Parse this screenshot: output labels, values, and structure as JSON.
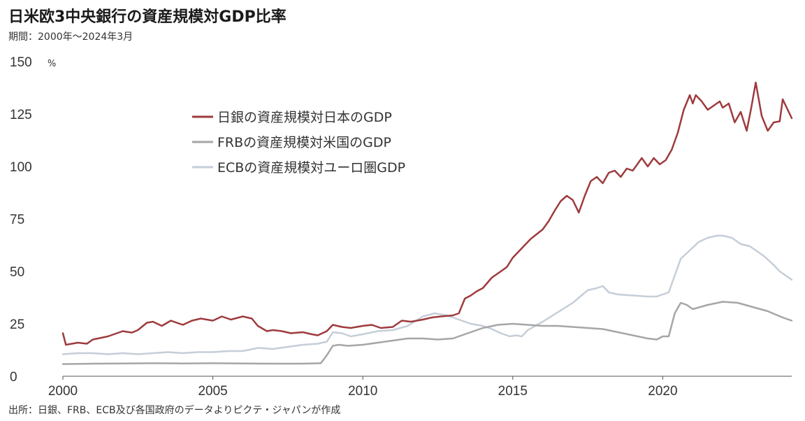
{
  "title": "日米欧3中央銀行の資産規模対GDP比率",
  "subtitle": "期間：2000年～2024年3月",
  "source": "出所：日銀、FRB、ECB及び各国政府のデータよりピクテ・ジャパンが作成",
  "chart_data": {
    "type": "line",
    "ylabel": "%",
    "ylim": [
      0,
      150
    ],
    "yticks": [
      0,
      25,
      50,
      75,
      100,
      125,
      150
    ],
    "xlim": [
      2000,
      2024.3
    ],
    "xticks": [
      2000,
      2005,
      2010,
      2015,
      2020
    ],
    "grid": false,
    "legend": "upper-left",
    "series": [
      {
        "name": "日銀の資産規模対日本のGDP",
        "color": "#9e3b3e",
        "points": [
          [
            2000.0,
            20.5
          ],
          [
            2000.1,
            15.0
          ],
          [
            2000.5,
            16.0
          ],
          [
            2000.8,
            15.5
          ],
          [
            2001.0,
            17.5
          ],
          [
            2001.5,
            19.0
          ],
          [
            2002.0,
            21.5
          ],
          [
            2002.3,
            20.8
          ],
          [
            2002.5,
            22.0
          ],
          [
            2002.8,
            25.5
          ],
          [
            2003.0,
            26.0
          ],
          [
            2003.3,
            24.0
          ],
          [
            2003.6,
            26.5
          ],
          [
            2004.0,
            24.5
          ],
          [
            2004.3,
            26.5
          ],
          [
            2004.6,
            27.5
          ],
          [
            2005.0,
            26.5
          ],
          [
            2005.3,
            28.5
          ],
          [
            2005.6,
            27.0
          ],
          [
            2006.0,
            28.5
          ],
          [
            2006.3,
            27.5
          ],
          [
            2006.5,
            24.0
          ],
          [
            2006.8,
            21.5
          ],
          [
            2007.0,
            22.0
          ],
          [
            2007.3,
            21.5
          ],
          [
            2007.6,
            20.5
          ],
          [
            2008.0,
            21.0
          ],
          [
            2008.3,
            20.0
          ],
          [
            2008.5,
            19.5
          ],
          [
            2008.8,
            21.5
          ],
          [
            2009.0,
            24.5
          ],
          [
            2009.3,
            23.5
          ],
          [
            2009.6,
            23.0
          ],
          [
            2010.0,
            24.0
          ],
          [
            2010.3,
            24.5
          ],
          [
            2010.6,
            23.0
          ],
          [
            2011.0,
            23.5
          ],
          [
            2011.3,
            26.5
          ],
          [
            2011.6,
            26.0
          ],
          [
            2012.0,
            27.0
          ],
          [
            2012.3,
            28.0
          ],
          [
            2012.6,
            28.5
          ],
          [
            2013.0,
            29.0
          ],
          [
            2013.2,
            30.0
          ],
          [
            2013.4,
            37.0
          ],
          [
            2013.6,
            38.5
          ],
          [
            2013.8,
            40.5
          ],
          [
            2014.0,
            42.0
          ],
          [
            2014.3,
            47.0
          ],
          [
            2014.6,
            50.0
          ],
          [
            2014.8,
            52.0
          ],
          [
            2015.0,
            56.5
          ],
          [
            2015.3,
            61.0
          ],
          [
            2015.6,
            65.5
          ],
          [
            2016.0,
            70.0
          ],
          [
            2016.2,
            74.0
          ],
          [
            2016.4,
            79.0
          ],
          [
            2016.6,
            83.5
          ],
          [
            2016.8,
            86.0
          ],
          [
            2017.0,
            84.0
          ],
          [
            2017.2,
            78.0
          ],
          [
            2017.4,
            86.0
          ],
          [
            2017.6,
            93.0
          ],
          [
            2017.8,
            95.0
          ],
          [
            2018.0,
            92.0
          ],
          [
            2018.2,
            97.0
          ],
          [
            2018.4,
            98.0
          ],
          [
            2018.6,
            95.0
          ],
          [
            2018.8,
            99.0
          ],
          [
            2019.0,
            98.0
          ],
          [
            2019.3,
            104.0
          ],
          [
            2019.5,
            100.0
          ],
          [
            2019.7,
            104.0
          ],
          [
            2019.9,
            101.0
          ],
          [
            2020.1,
            103.0
          ],
          [
            2020.3,
            108.0
          ],
          [
            2020.5,
            116.0
          ],
          [
            2020.7,
            127.0
          ],
          [
            2020.9,
            134.0
          ],
          [
            2021.0,
            130.0
          ],
          [
            2021.1,
            134.0
          ],
          [
            2021.3,
            131.0
          ],
          [
            2021.5,
            127.0
          ],
          [
            2021.7,
            129.0
          ],
          [
            2021.9,
            131.0
          ],
          [
            2022.0,
            128.0
          ],
          [
            2022.2,
            130.0
          ],
          [
            2022.4,
            121.0
          ],
          [
            2022.6,
            126.0
          ],
          [
            2022.8,
            117.0
          ],
          [
            2022.95,
            128.0
          ],
          [
            2023.1,
            140.0
          ],
          [
            2023.3,
            124.0
          ],
          [
            2023.5,
            117.0
          ],
          [
            2023.7,
            121.0
          ],
          [
            2023.9,
            121.5
          ],
          [
            2024.0,
            132.0
          ],
          [
            2024.3,
            123.0
          ]
        ]
      },
      {
        "name": "FRBの資産規模対米国のGDP",
        "color": "#a6a6a6",
        "points": [
          [
            2000.0,
            5.8
          ],
          [
            2001.0,
            6.0
          ],
          [
            2002.0,
            6.1
          ],
          [
            2003.0,
            6.2
          ],
          [
            2004.0,
            6.1
          ],
          [
            2005.0,
            6.2
          ],
          [
            2006.0,
            6.1
          ],
          [
            2007.0,
            6.0
          ],
          [
            2008.0,
            6.0
          ],
          [
            2008.6,
            6.2
          ],
          [
            2008.8,
            10.0
          ],
          [
            2009.0,
            14.5
          ],
          [
            2009.2,
            15.0
          ],
          [
            2009.5,
            14.5
          ],
          [
            2010.0,
            15.0
          ],
          [
            2010.5,
            16.0
          ],
          [
            2011.0,
            17.0
          ],
          [
            2011.5,
            18.0
          ],
          [
            2012.0,
            18.0
          ],
          [
            2012.5,
            17.5
          ],
          [
            2013.0,
            18.0
          ],
          [
            2013.5,
            20.5
          ],
          [
            2014.0,
            23.0
          ],
          [
            2014.5,
            24.5
          ],
          [
            2015.0,
            25.0
          ],
          [
            2015.5,
            24.5
          ],
          [
            2016.0,
            24.0
          ],
          [
            2016.5,
            24.0
          ],
          [
            2017.0,
            23.5
          ],
          [
            2017.5,
            23.0
          ],
          [
            2018.0,
            22.5
          ],
          [
            2018.5,
            21.0
          ],
          [
            2019.0,
            19.5
          ],
          [
            2019.5,
            18.0
          ],
          [
            2019.8,
            17.5
          ],
          [
            2020.0,
            19.0
          ],
          [
            2020.2,
            19.0
          ],
          [
            2020.4,
            30.0
          ],
          [
            2020.6,
            35.0
          ],
          [
            2020.8,
            34.0
          ],
          [
            2021.0,
            32.0
          ],
          [
            2021.5,
            34.0
          ],
          [
            2022.0,
            35.5
          ],
          [
            2022.5,
            35.0
          ],
          [
            2023.0,
            33.0
          ],
          [
            2023.5,
            31.0
          ],
          [
            2024.0,
            28.0
          ],
          [
            2024.3,
            26.5
          ]
        ]
      },
      {
        "name": "ECBの資産規模対ユーロ圏GDP",
        "color": "#c5ced8",
        "points": [
          [
            2000.0,
            10.5
          ],
          [
            2000.5,
            11.0
          ],
          [
            2001.0,
            11.0
          ],
          [
            2001.5,
            10.5
          ],
          [
            2002.0,
            11.0
          ],
          [
            2002.5,
            10.5
          ],
          [
            2003.0,
            11.0
          ],
          [
            2003.5,
            11.5
          ],
          [
            2004.0,
            11.0
          ],
          [
            2004.5,
            11.5
          ],
          [
            2005.0,
            11.5
          ],
          [
            2005.5,
            12.0
          ],
          [
            2006.0,
            12.0
          ],
          [
            2006.5,
            13.5
          ],
          [
            2007.0,
            13.0
          ],
          [
            2007.5,
            14.0
          ],
          [
            2008.0,
            15.0
          ],
          [
            2008.5,
            15.5
          ],
          [
            2008.8,
            16.5
          ],
          [
            2009.0,
            21.0
          ],
          [
            2009.3,
            20.5
          ],
          [
            2009.6,
            19.0
          ],
          [
            2010.0,
            20.0
          ],
          [
            2010.5,
            21.5
          ],
          [
            2011.0,
            22.0
          ],
          [
            2011.5,
            24.0
          ],
          [
            2012.0,
            28.5
          ],
          [
            2012.4,
            30.0
          ],
          [
            2012.8,
            29.0
          ],
          [
            2013.2,
            27.0
          ],
          [
            2013.6,
            25.0
          ],
          [
            2014.0,
            24.0
          ],
          [
            2014.3,
            22.5
          ],
          [
            2014.6,
            20.5
          ],
          [
            2014.9,
            19.0
          ],
          [
            2015.1,
            19.5
          ],
          [
            2015.3,
            19.0
          ],
          [
            2015.5,
            22.0
          ],
          [
            2016.0,
            26.0
          ],
          [
            2016.5,
            30.5
          ],
          [
            2017.0,
            35.0
          ],
          [
            2017.5,
            41.0
          ],
          [
            2017.8,
            42.0
          ],
          [
            2018.0,
            43.0
          ],
          [
            2018.2,
            40.0
          ],
          [
            2018.5,
            39.0
          ],
          [
            2019.0,
            38.5
          ],
          [
            2019.5,
            38.0
          ],
          [
            2019.8,
            38.0
          ],
          [
            2020.0,
            39.0
          ],
          [
            2020.2,
            40.0
          ],
          [
            2020.4,
            48.0
          ],
          [
            2020.6,
            56.0
          ],
          [
            2020.9,
            60.0
          ],
          [
            2021.2,
            64.0
          ],
          [
            2021.5,
            66.0
          ],
          [
            2021.8,
            67.0
          ],
          [
            2022.0,
            67.0
          ],
          [
            2022.3,
            66.0
          ],
          [
            2022.6,
            63.0
          ],
          [
            2022.9,
            62.0
          ],
          [
            2023.1,
            60.0
          ],
          [
            2023.4,
            57.0
          ],
          [
            2023.7,
            53.0
          ],
          [
            2023.9,
            50.0
          ],
          [
            2024.1,
            48.0
          ],
          [
            2024.3,
            46.0
          ]
        ]
      }
    ]
  }
}
